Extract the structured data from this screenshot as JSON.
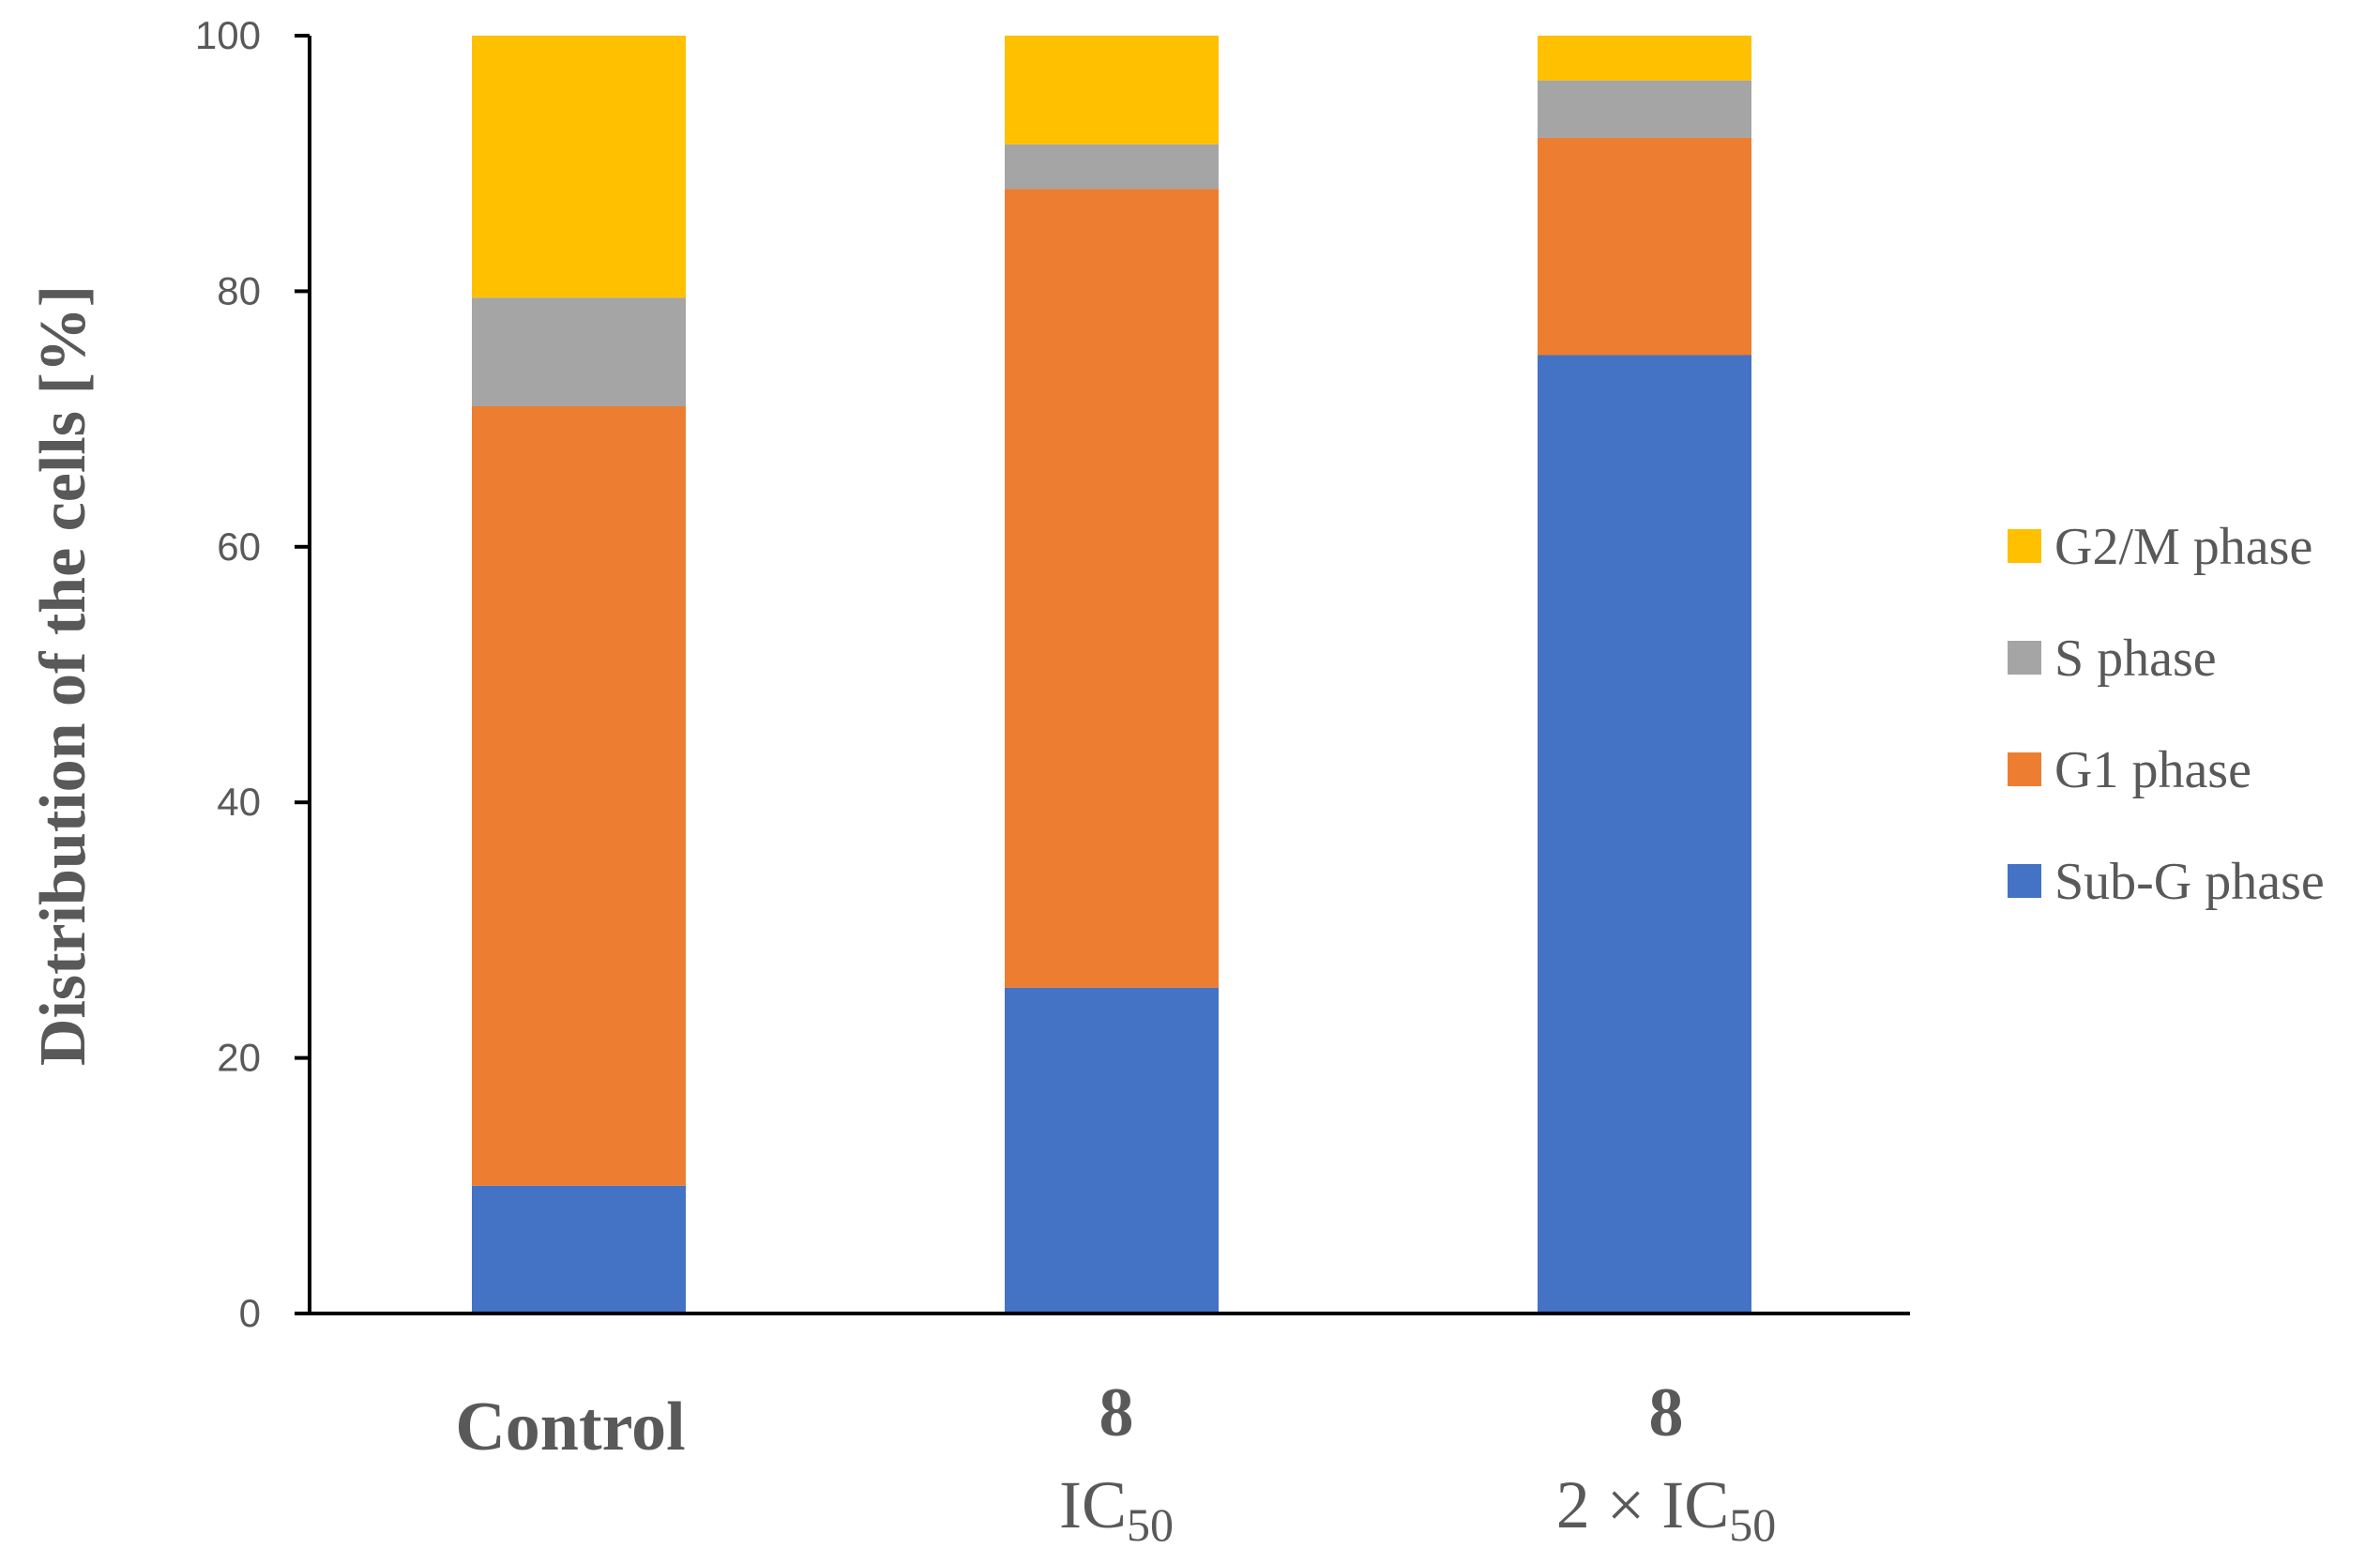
{
  "chart_data": {
    "type": "bar",
    "stacked": true,
    "title": "",
    "xlabel": "",
    "ylabel": "Distribution of the cells [%]",
    "ylim": [
      0,
      100
    ],
    "yticks": [
      "0",
      "20",
      "40",
      "60",
      "80",
      "100"
    ],
    "categories": [
      {
        "line1": "Control",
        "line2": ""
      },
      {
        "line1": "8",
        "line2_main": "IC",
        "line2_sub": "50"
      },
      {
        "line1": "8",
        "line2_main": "2 × IC",
        "line2_sub": "50"
      }
    ],
    "series": [
      {
        "name": "Sub-G phase",
        "color": "#4472C4",
        "values": [
          10,
          25.5,
          75
        ]
      },
      {
        "name": "G1 phase",
        "color": "#ED7D31",
        "values": [
          61,
          62.5,
          17
        ]
      },
      {
        "name": "S phase",
        "color": "#A5A5A5",
        "values": [
          8.5,
          3.5,
          4.5
        ]
      },
      {
        "name": "G2/M phase",
        "color": "#FFC000",
        "values": [
          20.5,
          8.5,
          3.5
        ]
      }
    ],
    "legend": {
      "position": "right",
      "order": [
        "G2/M phase",
        "S phase",
        "G1 phase",
        "Sub-G phase"
      ]
    }
  }
}
